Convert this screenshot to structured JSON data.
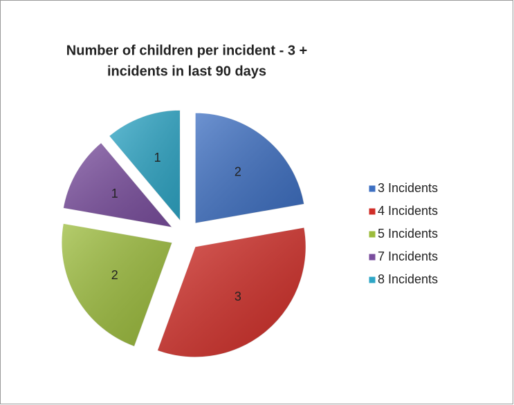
{
  "chart_data": {
    "type": "pie",
    "title": [
      "Number of children per incident - 3 +",
      "incidents in last 90 days"
    ],
    "categories": [
      "3 Incidents",
      "4 Incidents",
      "5 Incidents",
      "7 Incidents",
      "8 Incidents"
    ],
    "values": [
      2,
      3,
      2,
      1,
      1
    ],
    "colors": [
      "#3d6fc2",
      "#d02e28",
      "#9cbc3c",
      "#7a4e9e",
      "#2ea6c6"
    ],
    "exploded": true,
    "legend": "right"
  }
}
